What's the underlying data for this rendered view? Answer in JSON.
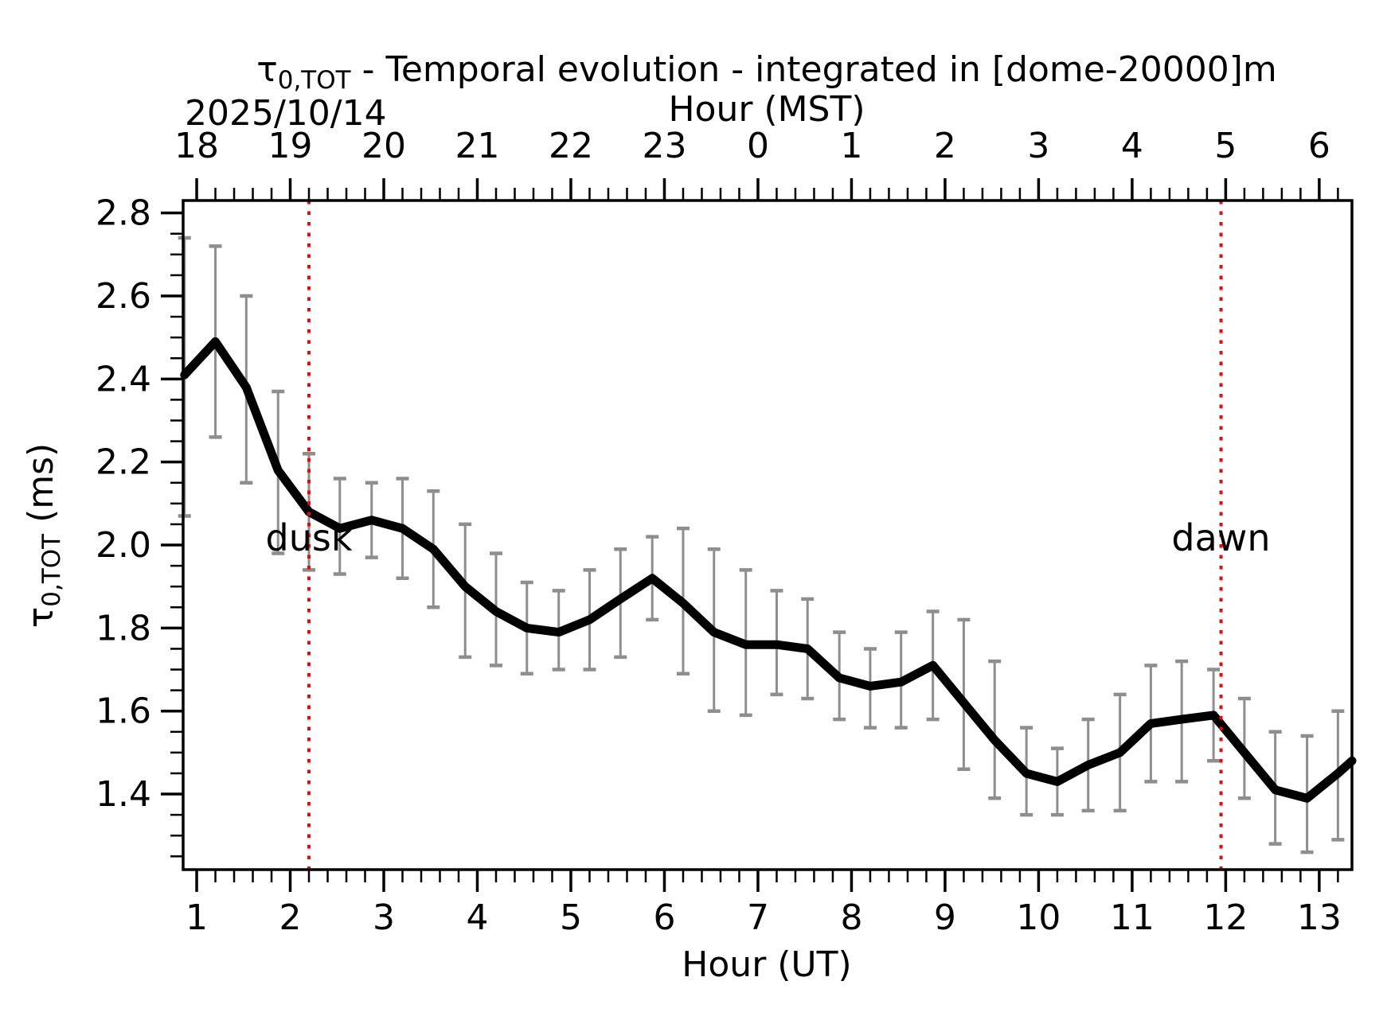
{
  "chart_data": {
    "type": "line",
    "title": {
      "tau": "τ",
      "subscript": "0,TOT",
      "rest": " - Temporal evolution - integrated in [dome-20000]m"
    },
    "date_annotation": "2025/10/14",
    "top_axis": {
      "label": "Hour (MST)",
      "tick_labels": [
        "18",
        "19",
        "20",
        "21",
        "22",
        "23",
        "0",
        "1",
        "2",
        "3",
        "4",
        "5",
        "6"
      ]
    },
    "bottom_axis": {
      "label": "Hour (UT)",
      "major_ticks": [
        1,
        2,
        3,
        4,
        5,
        6,
        7,
        8,
        9,
        10,
        11,
        12,
        13
      ],
      "tick_labels": [
        "1",
        "2",
        "3",
        "4",
        "5",
        "6",
        "7",
        "8",
        "9",
        "10",
        "11",
        "12",
        "13"
      ],
      "minor_step": 0.2,
      "xlim": [
        0.855,
        13.35
      ]
    },
    "left_axis": {
      "label_tau": "τ",
      "label_subscript": "0,TOT",
      "label_rest": " (ms)",
      "major_ticks": [
        1.4,
        1.6,
        1.8,
        2.0,
        2.2,
        2.4,
        2.6,
        2.8
      ],
      "tick_labels": [
        "1.4",
        "1.6",
        "1.8",
        "2.0",
        "2.2",
        "2.4",
        "2.6",
        "2.8"
      ],
      "minor_step": 0.05,
      "ylim": [
        1.218,
        2.83
      ]
    },
    "series": [
      {
        "name": "tau0_tot_mean",
        "x": [
          0.87,
          1.2,
          1.53,
          1.87,
          2.2,
          2.53,
          2.87,
          3.2,
          3.53,
          3.87,
          4.2,
          4.53,
          4.87,
          5.2,
          5.53,
          5.87,
          6.2,
          6.53,
          6.87,
          7.2,
          7.53,
          7.87,
          8.2,
          8.53,
          8.87,
          9.2,
          9.53,
          9.87,
          10.2,
          10.53,
          10.87,
          11.2,
          11.53,
          11.87,
          12.2,
          12.53,
          12.87,
          13.2
        ],
        "y": [
          2.41,
          2.49,
          2.38,
          2.18,
          2.08,
          2.04,
          2.06,
          2.04,
          1.99,
          1.9,
          1.84,
          1.8,
          1.79,
          1.82,
          1.87,
          1.92,
          1.86,
          1.79,
          1.76,
          1.76,
          1.75,
          1.68,
          1.66,
          1.67,
          1.71,
          1.62,
          1.53,
          1.45,
          1.43,
          1.47,
          1.5,
          1.57,
          1.58,
          1.59,
          1.5,
          1.41,
          1.39,
          1.45
        ],
        "err_lo": [
          2.07,
          2.26,
          2.15,
          1.98,
          1.94,
          1.93,
          1.97,
          1.92,
          1.85,
          1.73,
          1.71,
          1.69,
          1.7,
          1.7,
          1.73,
          1.82,
          1.69,
          1.6,
          1.59,
          1.64,
          1.63,
          1.58,
          1.56,
          1.56,
          1.58,
          1.46,
          1.39,
          1.35,
          1.35,
          1.36,
          1.36,
          1.43,
          1.43,
          1.48,
          1.39,
          1.28,
          1.26,
          1.29
        ],
        "err_hi": [
          2.74,
          2.72,
          2.6,
          2.37,
          2.22,
          2.16,
          2.15,
          2.16,
          2.13,
          2.05,
          1.98,
          1.91,
          1.89,
          1.94,
          1.99,
          2.02,
          2.04,
          1.99,
          1.94,
          1.89,
          1.87,
          1.79,
          1.75,
          1.79,
          1.84,
          1.82,
          1.72,
          1.56,
          1.51,
          1.58,
          1.64,
          1.71,
          1.72,
          1.7,
          1.63,
          1.55,
          1.54,
          1.6
        ]
      }
    ],
    "edge_point": {
      "x": 13.35,
      "y": 1.48
    },
    "annotations": {
      "dusk": {
        "label": "dusk",
        "x": 2.2
      },
      "dawn": {
        "label": "dawn",
        "x": 11.95
      }
    },
    "colors": {
      "line": "#000000",
      "error_bar": "#8e8e8e",
      "event": "#ff0000",
      "background": "#ffffff"
    },
    "legend": null,
    "grid": false
  }
}
